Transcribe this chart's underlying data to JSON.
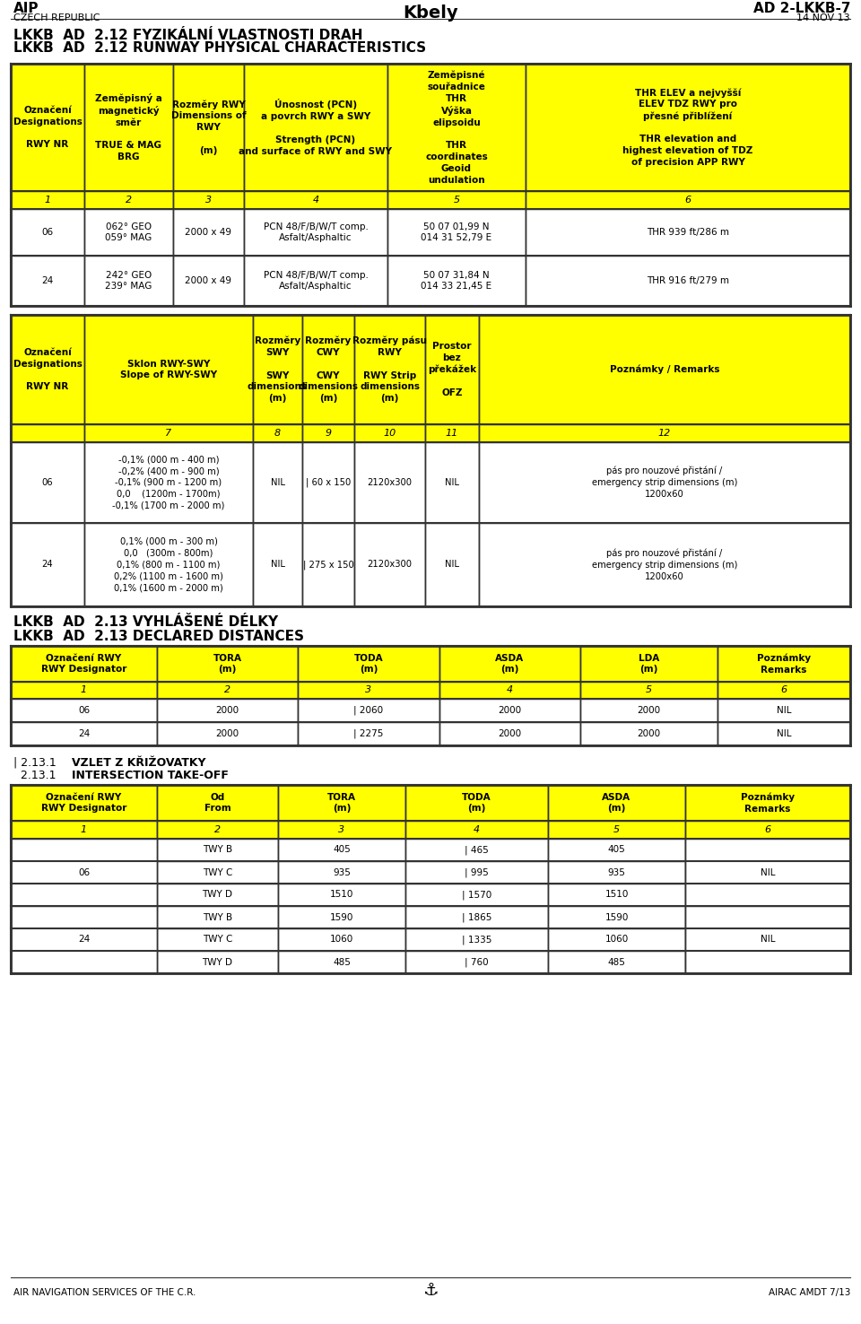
{
  "header_left_line1": "AIP",
  "header_left_line2": "CZECH REPUBLIC",
  "header_center": "Kbely",
  "header_right_line1": "AD 2-LKKB-7",
  "header_right_line2": "14 NOV 13",
  "section1_title_cz": "LKKB  AD  2.12 FYZIKÁLNÍ VLASTNOSTI DRAH",
  "section1_title_en": "LKKB  AD  2.12 RUNWAY PHYSICAL CHARACTERISTICS",
  "section2_title_cz": "LKKB  AD  2.13 VYHLÁŠENÉ DÉLKY",
  "section2_title_en": "LKKB  AD  2.13 DECLARED DISTANCES",
  "section3_line1": "| 2.13.1  VZLET Z KŘÍŽOVATKY",
  "section3_line2": "  2.13.1  INTERSECTION TAKE-OFF",
  "t1_col_headers": [
    "Označení\nDesignations\n\nRWY NR",
    "Zeměpisný a\nmagnetický\nsměr\n\nTRUE & MAG\nBRG",
    "Rozměry RWY\nDimensions of\nRWY\n\n(m)",
    "Únosnost (PCN)\na povrch RWY a SWY\n\nStrength (PCN)\nand surface of RWY and SWY",
    "Zeměpisné\nsouřadnice\nTHR\nVýška\nelipsoidu\n\nTHR\ncoordinates\nGeoid\nundulation",
    "THR ELEV a nejvyšší\nELEV TDZ RWY pro\npřesné přiblížení\n\nTHR elevation and\nhighest elevation of TDZ\nof precision APP RWY"
  ],
  "t1_num_row": [
    "1",
    "2",
    "3",
    "4",
    "5",
    "6"
  ],
  "t1_data": [
    [
      "06",
      "062° GEO\n059° MAG",
      "2000 x 49",
      "PCN 48/F/B/W/T comp.\nAsfalt/Asphaltic",
      "50 07 01,99 N\n014 31 52,79 E",
      "THR 939 ft/286 m"
    ],
    [
      "24",
      "242° GEO\n239° MAG",
      "2000 x 49",
      "PCN 48/F/B/W/T comp.\nAsfalt/Asphaltic",
      "50 07 31,84 N\n014 33 21,45 E",
      "THR 916 ft/279 m"
    ]
  ],
  "t2_col_headers": [
    "Označení\nDesignations\n\nRWY NR",
    "Sklon RWY-SWY\nSlope of RWY-SWY",
    "Rozměry\nSWY\n\nSWY\ndimensions\n(m)",
    "Rozměry\nCWY\n\nCWY\ndimensions\n(m)",
    "Rozměry pásu\nRWY\n\nRWY Strip\ndimensions\n(m)",
    "Prostor\nbez\npřekážek\n\nOFZ",
    "Poznámky / Remarks"
  ],
  "t2_num_row": [
    "",
    "7",
    "8",
    "9",
    "10",
    "11",
    "12"
  ],
  "t2_data": [
    [
      "06",
      "-0,1% (000 m - 400 m)\n-0,2% (400 m - 900 m)\n-0,1% (900 m - 1200 m)\n0,0    (1200m - 1700m)\n-0,1% (1700 m - 2000 m)",
      "NIL",
      "| 60 x 150",
      "2120x300",
      "NIL",
      "pás pro nouzové přistání /\nemergency strip dimensions (m)\n1200x60"
    ],
    [
      "24",
      "0,1% (000 m - 300 m)\n0,0   (300m - 800m)\n0,1% (800 m - 1100 m)\n0,2% (1100 m - 1600 m)\n0,1% (1600 m - 2000 m)",
      "NIL",
      "| 275 x 150",
      "2120x300",
      "NIL",
      "pás pro nouzové přistání /\nemergency strip dimensions (m)\n1200x60"
    ]
  ],
  "t3_col_headers": [
    "Označení RWY\nRWY Designator",
    "TORA\n(m)",
    "TODA\n(m)",
    "ASDA\n(m)",
    "LDA\n(m)",
    "Poznámky\nRemarks"
  ],
  "t3_num_row": [
    "1",
    "2",
    "3",
    "4",
    "5",
    "6"
  ],
  "t3_data": [
    [
      "06",
      "2000",
      "| 2060",
      "2000",
      "2000",
      "NIL"
    ],
    [
      "24",
      "2000",
      "| 2275",
      "2000",
      "2000",
      "NIL"
    ]
  ],
  "t4_col_headers": [
    "Označení RWY\nRWY Designator",
    "Od\nFrom",
    "TORA\n(m)",
    "TODA\n(m)",
    "ASDA\n(m)",
    "Poznámky\nRemarks"
  ],
  "t4_num_row": [
    "1",
    "2",
    "3",
    "4",
    "5",
    "6"
  ],
  "t4_data": [
    [
      "TWY B",
      "405",
      "| 465",
      "405"
    ],
    [
      "TWY C",
      "935",
      "| 995",
      "935"
    ],
    [
      "TWY D",
      "1510",
      "| 1570",
      "1510"
    ],
    [
      "TWY B",
      "1590",
      "| 1865",
      "1590"
    ],
    [
      "TWY C",
      "1060",
      "| 1335",
      "1060"
    ],
    [
      "TWY D",
      "485",
      "| 760",
      "485"
    ]
  ],
  "footer_left": "AIR NAVIGATION SERVICES OF THE C.R.",
  "footer_right": "AIRAC AMDT 7/13",
  "yellow": "#FFFF00",
  "white": "#FFFFFF",
  "black": "#000000"
}
